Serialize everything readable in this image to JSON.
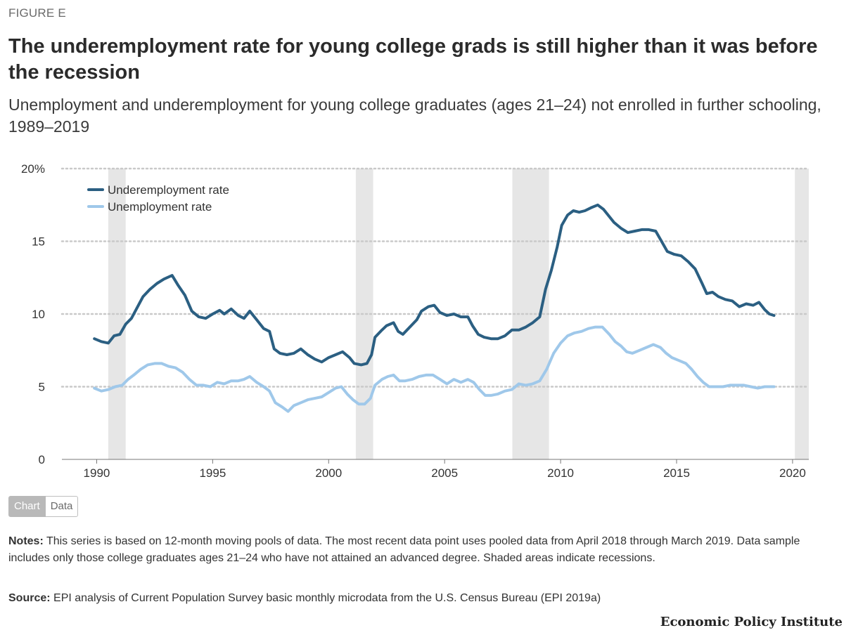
{
  "figure_label": "FIGURE E",
  "title": "The underemployment rate for young college grads is still higher than it was before the recession",
  "subtitle": "Unemployment and underemployment for young college graduates (ages 21–24) not enrolled in further schooling, 1989–2019",
  "toggle": {
    "chart_label": "Chart",
    "data_label": "Data"
  },
  "notes": {
    "label": "Notes:",
    "text": " This series is based on 12-month moving pools of data. The most recent data point uses pooled data from April 2018 through March 2019. Data sample includes only those college graduates ages 21–24 who have not attained an advanced degree. Shaded areas indicate recessions."
  },
  "source": {
    "label": "Source:",
    "text": " EPI analysis of Current Population Survey basic monthly microdata from the U.S. Census Bureau (EPI 2019a)"
  },
  "brand": "Economic Policy Institute",
  "chart_data": {
    "type": "line",
    "xlim": [
      1988.5,
      2020.7
    ],
    "ylim": [
      0,
      20
    ],
    "x_ticks": [
      1990,
      1995,
      2000,
      2005,
      2010,
      2015,
      2020
    ],
    "y_ticks": [
      0,
      5,
      10,
      15,
      20
    ],
    "y_tick_labels": [
      "0",
      "5",
      "10",
      "15",
      "20%"
    ],
    "grid": "dotted horizontal",
    "legend_position": "top-left",
    "recessions": [
      [
        1990.5,
        1991.25
      ],
      [
        2001.17,
        2001.92
      ],
      [
        2007.92,
        2009.5
      ],
      [
        2020.1,
        2020.7
      ]
    ],
    "series": [
      {
        "name": "Underemployment rate",
        "color": "#2b5f82",
        "points": [
          [
            1989.9,
            8.3
          ],
          [
            1990.2,
            8.1
          ],
          [
            1990.5,
            8.0
          ],
          [
            1990.75,
            8.5
          ],
          [
            1991.0,
            8.6
          ],
          [
            1991.25,
            9.3
          ],
          [
            1991.5,
            9.7
          ],
          [
            1991.8,
            10.6
          ],
          [
            1992.0,
            11.2
          ],
          [
            1992.3,
            11.7
          ],
          [
            1992.6,
            12.1
          ],
          [
            1992.9,
            12.4
          ],
          [
            1993.25,
            12.65
          ],
          [
            1993.5,
            12.0
          ],
          [
            1993.8,
            11.3
          ],
          [
            1994.1,
            10.2
          ],
          [
            1994.4,
            9.8
          ],
          [
            1994.7,
            9.7
          ],
          [
            1995.0,
            10.0
          ],
          [
            1995.3,
            10.25
          ],
          [
            1995.5,
            10.0
          ],
          [
            1995.8,
            10.35
          ],
          [
            1996.1,
            9.9
          ],
          [
            1996.35,
            9.7
          ],
          [
            1996.6,
            10.2
          ],
          [
            1996.9,
            9.6
          ],
          [
            1997.2,
            9.0
          ],
          [
            1997.45,
            8.8
          ],
          [
            1997.65,
            7.6
          ],
          [
            1997.9,
            7.3
          ],
          [
            1998.2,
            7.2
          ],
          [
            1998.5,
            7.3
          ],
          [
            1998.8,
            7.6
          ],
          [
            1999.1,
            7.2
          ],
          [
            1999.4,
            6.9
          ],
          [
            1999.7,
            6.7
          ],
          [
            2000.0,
            7.0
          ],
          [
            2000.3,
            7.2
          ],
          [
            2000.6,
            7.4
          ],
          [
            2000.9,
            7.0
          ],
          [
            2001.1,
            6.6
          ],
          [
            2001.4,
            6.5
          ],
          [
            2001.65,
            6.6
          ],
          [
            2001.85,
            7.2
          ],
          [
            2002.0,
            8.4
          ],
          [
            2002.3,
            8.9
          ],
          [
            2002.5,
            9.2
          ],
          [
            2002.8,
            9.4
          ],
          [
            2003.0,
            8.8
          ],
          [
            2003.2,
            8.6
          ],
          [
            2003.5,
            9.1
          ],
          [
            2003.8,
            9.6
          ],
          [
            2004.0,
            10.2
          ],
          [
            2004.3,
            10.5
          ],
          [
            2004.55,
            10.6
          ],
          [
            2004.8,
            10.1
          ],
          [
            2005.1,
            9.9
          ],
          [
            2005.4,
            10.0
          ],
          [
            2005.7,
            9.8
          ],
          [
            2006.0,
            9.8
          ],
          [
            2006.2,
            9.2
          ],
          [
            2006.45,
            8.6
          ],
          [
            2006.7,
            8.4
          ],
          [
            2007.0,
            8.3
          ],
          [
            2007.3,
            8.3
          ],
          [
            2007.6,
            8.5
          ],
          [
            2007.9,
            8.9
          ],
          [
            2008.2,
            8.9
          ],
          [
            2008.5,
            9.1
          ],
          [
            2008.8,
            9.4
          ],
          [
            2009.1,
            9.8
          ],
          [
            2009.35,
            11.7
          ],
          [
            2009.6,
            13.0
          ],
          [
            2009.85,
            14.6
          ],
          [
            2010.05,
            16.1
          ],
          [
            2010.3,
            16.8
          ],
          [
            2010.55,
            17.1
          ],
          [
            2010.8,
            17.0
          ],
          [
            2011.05,
            17.1
          ],
          [
            2011.3,
            17.3
          ],
          [
            2011.6,
            17.5
          ],
          [
            2011.85,
            17.2
          ],
          [
            2012.05,
            16.8
          ],
          [
            2012.3,
            16.3
          ],
          [
            2012.6,
            15.9
          ],
          [
            2012.9,
            15.6
          ],
          [
            2013.2,
            15.7
          ],
          [
            2013.5,
            15.8
          ],
          [
            2013.8,
            15.8
          ],
          [
            2014.1,
            15.7
          ],
          [
            2014.35,
            15.0
          ],
          [
            2014.6,
            14.3
          ],
          [
            2014.9,
            14.1
          ],
          [
            2015.2,
            14.0
          ],
          [
            2015.5,
            13.6
          ],
          [
            2015.8,
            13.1
          ],
          [
            2016.1,
            12.1
          ],
          [
            2016.3,
            11.4
          ],
          [
            2016.55,
            11.5
          ],
          [
            2016.8,
            11.2
          ],
          [
            2017.1,
            11.0
          ],
          [
            2017.4,
            10.9
          ],
          [
            2017.7,
            10.5
          ],
          [
            2018.0,
            10.7
          ],
          [
            2018.3,
            10.6
          ],
          [
            2018.55,
            10.8
          ],
          [
            2018.8,
            10.3
          ],
          [
            2019.0,
            10.0
          ],
          [
            2019.2,
            9.9
          ]
        ]
      },
      {
        "name": "Unemployment rate",
        "color": "#9fc8ea",
        "points": [
          [
            1989.9,
            4.9
          ],
          [
            1990.2,
            4.7
          ],
          [
            1990.5,
            4.8
          ],
          [
            1990.8,
            5.0
          ],
          [
            1991.1,
            5.1
          ],
          [
            1991.35,
            5.5
          ],
          [
            1991.6,
            5.8
          ],
          [
            1991.9,
            6.2
          ],
          [
            1992.2,
            6.5
          ],
          [
            1992.5,
            6.6
          ],
          [
            1992.8,
            6.6
          ],
          [
            1993.1,
            6.4
          ],
          [
            1993.4,
            6.3
          ],
          [
            1993.7,
            6.0
          ],
          [
            1994.0,
            5.5
          ],
          [
            1994.3,
            5.1
          ],
          [
            1994.6,
            5.1
          ],
          [
            1994.9,
            5.0
          ],
          [
            1995.2,
            5.3
          ],
          [
            1995.5,
            5.2
          ],
          [
            1995.8,
            5.4
          ],
          [
            1996.1,
            5.4
          ],
          [
            1996.35,
            5.5
          ],
          [
            1996.6,
            5.7
          ],
          [
            1996.9,
            5.3
          ],
          [
            1997.2,
            5.0
          ],
          [
            1997.45,
            4.7
          ],
          [
            1997.7,
            3.9
          ],
          [
            1998.0,
            3.6
          ],
          [
            1998.25,
            3.3
          ],
          [
            1998.5,
            3.7
          ],
          [
            1998.8,
            3.9
          ],
          [
            1999.1,
            4.1
          ],
          [
            1999.4,
            4.2
          ],
          [
            1999.7,
            4.3
          ],
          [
            2000.0,
            4.6
          ],
          [
            2000.3,
            4.9
          ],
          [
            2000.55,
            5.0
          ],
          [
            2000.8,
            4.5
          ],
          [
            2001.05,
            4.1
          ],
          [
            2001.3,
            3.8
          ],
          [
            2001.55,
            3.8
          ],
          [
            2001.8,
            4.2
          ],
          [
            2002.0,
            5.1
          ],
          [
            2002.3,
            5.5
          ],
          [
            2002.55,
            5.7
          ],
          [
            2002.8,
            5.8
          ],
          [
            2003.05,
            5.4
          ],
          [
            2003.3,
            5.4
          ],
          [
            2003.6,
            5.5
          ],
          [
            2003.9,
            5.7
          ],
          [
            2004.2,
            5.8
          ],
          [
            2004.5,
            5.8
          ],
          [
            2004.8,
            5.5
          ],
          [
            2005.1,
            5.2
          ],
          [
            2005.4,
            5.5
          ],
          [
            2005.7,
            5.3
          ],
          [
            2006.0,
            5.5
          ],
          [
            2006.25,
            5.3
          ],
          [
            2006.5,
            4.8
          ],
          [
            2006.75,
            4.4
          ],
          [
            2007.0,
            4.4
          ],
          [
            2007.3,
            4.5
          ],
          [
            2007.6,
            4.7
          ],
          [
            2007.9,
            4.8
          ],
          [
            2008.2,
            5.2
          ],
          [
            2008.5,
            5.1
          ],
          [
            2008.8,
            5.2
          ],
          [
            2009.1,
            5.4
          ],
          [
            2009.4,
            6.2
          ],
          [
            2009.7,
            7.3
          ],
          [
            2010.0,
            8.0
          ],
          [
            2010.3,
            8.5
          ],
          [
            2010.6,
            8.7
          ],
          [
            2010.9,
            8.8
          ],
          [
            2011.2,
            9.0
          ],
          [
            2011.5,
            9.1
          ],
          [
            2011.8,
            9.1
          ],
          [
            2012.1,
            8.6
          ],
          [
            2012.35,
            8.1
          ],
          [
            2012.6,
            7.8
          ],
          [
            2012.85,
            7.4
          ],
          [
            2013.1,
            7.3
          ],
          [
            2013.4,
            7.5
          ],
          [
            2013.7,
            7.7
          ],
          [
            2014.0,
            7.9
          ],
          [
            2014.3,
            7.7
          ],
          [
            2014.55,
            7.3
          ],
          [
            2014.8,
            7.0
          ],
          [
            2015.1,
            6.8
          ],
          [
            2015.4,
            6.6
          ],
          [
            2015.65,
            6.2
          ],
          [
            2015.9,
            5.7
          ],
          [
            2016.15,
            5.3
          ],
          [
            2016.4,
            5.0
          ],
          [
            2016.7,
            5.0
          ],
          [
            2017.0,
            5.0
          ],
          [
            2017.3,
            5.1
          ],
          [
            2017.6,
            5.1
          ],
          [
            2017.9,
            5.1
          ],
          [
            2018.2,
            5.0
          ],
          [
            2018.5,
            4.9
          ],
          [
            2018.8,
            5.0
          ],
          [
            2019.0,
            5.0
          ],
          [
            2019.2,
            5.0
          ]
        ]
      }
    ]
  }
}
